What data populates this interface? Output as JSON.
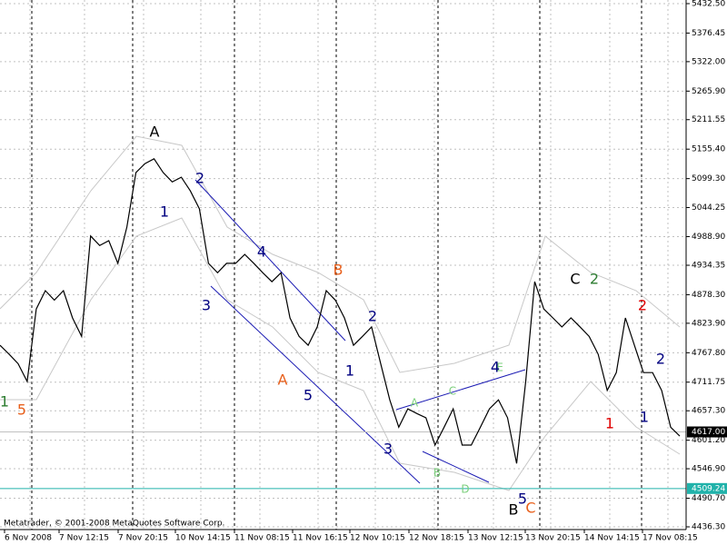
{
  "chart_data": {
    "type": "line",
    "series": [
      {
        "color": "#000000",
        "values": [
          4782,
          4765,
          4747,
          4713,
          4851,
          4886,
          4868,
          4886,
          4834,
          4799,
          4990,
          4972,
          4981,
          4938,
          5007,
          5111,
          5128,
          5137,
          5111,
          5093,
          5102,
          5076,
          5042,
          4938,
          4920,
          4938,
          4938,
          4955,
          4938,
          4920,
          4903,
          4920,
          4834,
          4799,
          4782,
          4817,
          4886,
          4868,
          4834,
          4782,
          4799,
          4817,
          4747,
          4678,
          4626,
          4661,
          4652,
          4644,
          4592,
          4626,
          4661,
          4592,
          4592,
          4626,
          4661,
          4678,
          4644,
          4557,
          4713,
          4903,
          4851,
          4834,
          4817,
          4834,
          4817,
          4799,
          4765,
          4696,
          4730,
          4834,
          4782,
          4730,
          4730,
          4696,
          4626,
          4609
        ]
      }
    ],
    "x_labels": [
      "6 Nov 2008",
      "7 Nov 12:15",
      "7 Nov 20:15",
      "10 Nov 14:15",
      "11 Nov 08:15",
      "11 Nov 16:15",
      "12 Nov 10:15",
      "12 Nov 18:15",
      "13 Nov 12:15",
      "13 Nov 20:15",
      "14 Nov 14:15",
      "17 Nov 08:15"
    ],
    "ylim": [
      4431.1,
      5439.4
    ],
    "yticks": [
      {
        "value": 5432.5,
        "label": "5432.50"
      },
      {
        "value": 5376.45,
        "label": "5376.45"
      },
      {
        "value": 5322,
        "label": "5322.00"
      },
      {
        "value": 5265.9,
        "label": "5265.90"
      },
      {
        "value": 5211.55,
        "label": "5211.55"
      },
      {
        "value": 5155.4,
        "label": "5155.40"
      },
      {
        "value": 5099.3,
        "label": "5099.30"
      },
      {
        "value": 5044.25,
        "label": "5044.25"
      },
      {
        "value": 4988.9,
        "label": "4988.90"
      },
      {
        "value": 4934.35,
        "label": "4934.35"
      },
      {
        "value": 4878.3,
        "label": "4878.30"
      },
      {
        "value": 4823.9,
        "label": "4823.90"
      },
      {
        "value": 4767.8,
        "label": "4767.80"
      },
      {
        "value": 4711.75,
        "label": "4711.75"
      },
      {
        "value": 4657.3,
        "label": "4657.30"
      },
      {
        "value": 4601.2,
        "label": "4601.20"
      },
      {
        "value": 4546.9,
        "label": "4546.90"
      },
      {
        "value": 4490.7,
        "label": "4490.70"
      },
      {
        "value": 4436.3,
        "label": "4436.30"
      }
    ],
    "price_lines": [
      {
        "value": 4617,
        "label": "4617.00",
        "color": "#c0c0c0"
      },
      {
        "value": 4509.24,
        "label": "4509.24",
        "color": "#20b2aa"
      }
    ],
    "grid": true,
    "annotations": [
      {
        "text": "1",
        "color": "#2e7d32"
      },
      {
        "text": "5",
        "color": "#e8601c"
      },
      {
        "text": "A",
        "color": "#000000"
      },
      {
        "text": "1",
        "color": "#000080"
      },
      {
        "text": "2",
        "color": "#000080"
      },
      {
        "text": "3",
        "color": "#000080"
      },
      {
        "text": "4",
        "color": "#000080"
      },
      {
        "text": "A",
        "color": "#e8601c"
      },
      {
        "text": "5",
        "color": "#000080"
      },
      {
        "text": "B",
        "color": "#e8601c"
      },
      {
        "text": "1",
        "color": "#000080"
      },
      {
        "text": "2",
        "color": "#000080"
      },
      {
        "text": "3",
        "color": "#000080"
      },
      {
        "text": "A",
        "color": "#7ccf7c"
      },
      {
        "text": "B",
        "color": "#7ccf7c"
      },
      {
        "text": "C",
        "color": "#7ccf7c"
      },
      {
        "text": "D",
        "color": "#7ccf7c"
      },
      {
        "text": "E",
        "color": "#7ccf7c"
      },
      {
        "text": "4",
        "color": "#000080"
      },
      {
        "text": "5",
        "color": "#000080"
      },
      {
        "text": "B",
        "color": "#000000"
      },
      {
        "text": "C",
        "color": "#e8601c"
      },
      {
        "text": "C",
        "color": "#000000"
      },
      {
        "text": "2",
        "color": "#2e7d32"
      },
      {
        "text": "2",
        "color": "#e00000"
      },
      {
        "text": "1",
        "color": "#e00000"
      },
      {
        "text": "1",
        "color": "#000080"
      },
      {
        "text": "2",
        "color": "#000080"
      }
    ],
    "footer": "Metatrader, © 2001-2008 MetaQuotes Software Corp."
  }
}
